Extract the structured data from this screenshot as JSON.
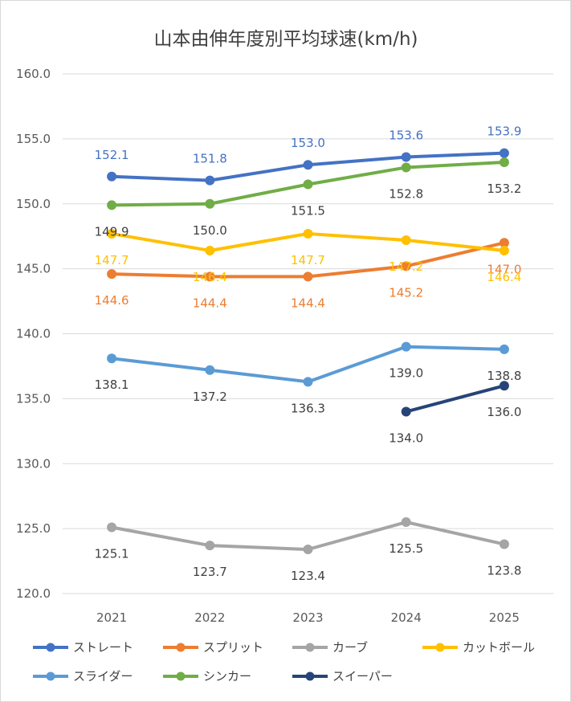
{
  "chart_data": {
    "type": "line",
    "title": "山本由伸年度別平均球速(km/h)",
    "categories": [
      "2021",
      "2022",
      "2023",
      "2024",
      "2025"
    ],
    "ylim": [
      120,
      160
    ],
    "yticks": [
      "120.0",
      "125.0",
      "130.0",
      "135.0",
      "140.0",
      "145.0",
      "150.0",
      "155.0",
      "160.0"
    ],
    "grid": true,
    "legend_position": "bottom",
    "series": [
      {
        "name": "ストレート",
        "color": "#4472C4",
        "label_color": "#4472C4",
        "label_pos": "above",
        "values": [
          152.1,
          151.8,
          153.0,
          153.6,
          153.9
        ],
        "labels": [
          "152.1",
          "151.8",
          "153.0",
          "153.6",
          "153.9"
        ]
      },
      {
        "name": "スプリット",
        "color": "#ED7D31",
        "label_color": "#ED7D31",
        "label_pos": "below",
        "values": [
          144.6,
          144.4,
          144.4,
          145.2,
          147.0
        ],
        "labels": [
          "144.6",
          "144.4",
          "144.4",
          "145.2",
          "147.0"
        ]
      },
      {
        "name": "カーブ",
        "color": "#A5A5A5",
        "label_color": "#404040",
        "label_pos": "below",
        "values": [
          125.1,
          123.7,
          123.4,
          125.5,
          123.8
        ],
        "labels": [
          "125.1",
          "123.7",
          "123.4",
          "125.5",
          "123.8"
        ]
      },
      {
        "name": "カットボール",
        "color": "#FFC000",
        "label_color": "#FFC000",
        "label_pos": "below",
        "values": [
          147.7,
          146.4,
          147.7,
          147.2,
          146.4
        ],
        "labels": [
          "147.7",
          "146.4",
          "147.7",
          "147.2",
          "146.4"
        ]
      },
      {
        "name": "スライダー",
        "color": "#5B9BD5",
        "label_color": "#404040",
        "label_pos": "below",
        "values": [
          138.1,
          137.2,
          136.3,
          139.0,
          138.8
        ],
        "labels": [
          "138.1",
          "137.2",
          "136.3",
          "139.0",
          "138.8"
        ]
      },
      {
        "name": "シンカー",
        "color": "#70AD47",
        "label_color": "#404040",
        "label_pos": "below",
        "values": [
          149.9,
          150.0,
          151.5,
          152.8,
          153.2
        ],
        "labels": [
          "149.9",
          "150.0",
          "151.5",
          "152.8",
          "153.2"
        ]
      },
      {
        "name": "スイーパー",
        "color": "#264478",
        "label_color": "#404040",
        "label_pos": "below",
        "values": [
          null,
          null,
          null,
          134.0,
          136.0
        ],
        "labels": [
          "",
          "",
          "",
          "134.0",
          "136.0"
        ]
      }
    ]
  }
}
